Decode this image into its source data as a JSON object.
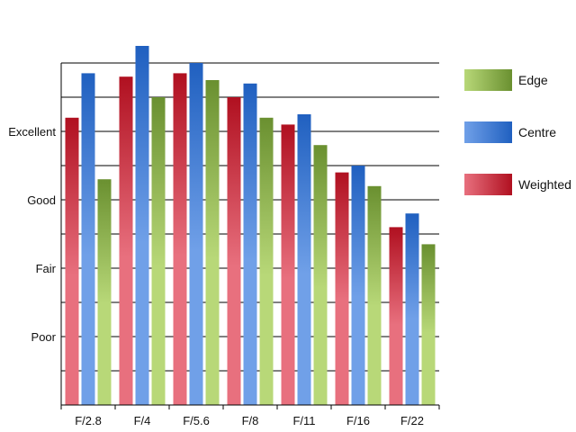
{
  "chart_data": {
    "type": "bar",
    "title": "",
    "xlabel": "",
    "ylabel": "",
    "categories": [
      "F/2.8",
      "F/4",
      "F/5.6",
      "F/8",
      "F/11",
      "F/16",
      "F/22"
    ],
    "ylim": [
      0,
      10
    ],
    "y_ticks": [
      {
        "label": "Poor",
        "value": 2
      },
      {
        "label": "Fair",
        "value": 4
      },
      {
        "label": "Good",
        "value": 6
      },
      {
        "label": "Excellent",
        "value": 8
      }
    ],
    "series": [
      {
        "name": "Weighted",
        "values": [
          8.4,
          9.6,
          9.7,
          9.0,
          8.2,
          6.8,
          5.2
        ],
        "color_light": "#e8707e",
        "color_dark": "#b01020"
      },
      {
        "name": "Centre",
        "values": [
          9.7,
          10.5,
          10.0,
          9.4,
          8.5,
          7.0,
          5.6
        ],
        "color_light": "#70a0e8",
        "color_dark": "#2060c0"
      },
      {
        "name": "Edge",
        "values": [
          6.6,
          9.0,
          9.5,
          8.4,
          7.6,
          6.4,
          4.7
        ],
        "color_light": "#b8d878",
        "color_dark": "#6a9030"
      }
    ],
    "legend_order": [
      "Edge",
      "Centre",
      "Weighted"
    ],
    "legend_position": "right",
    "grid": true
  }
}
